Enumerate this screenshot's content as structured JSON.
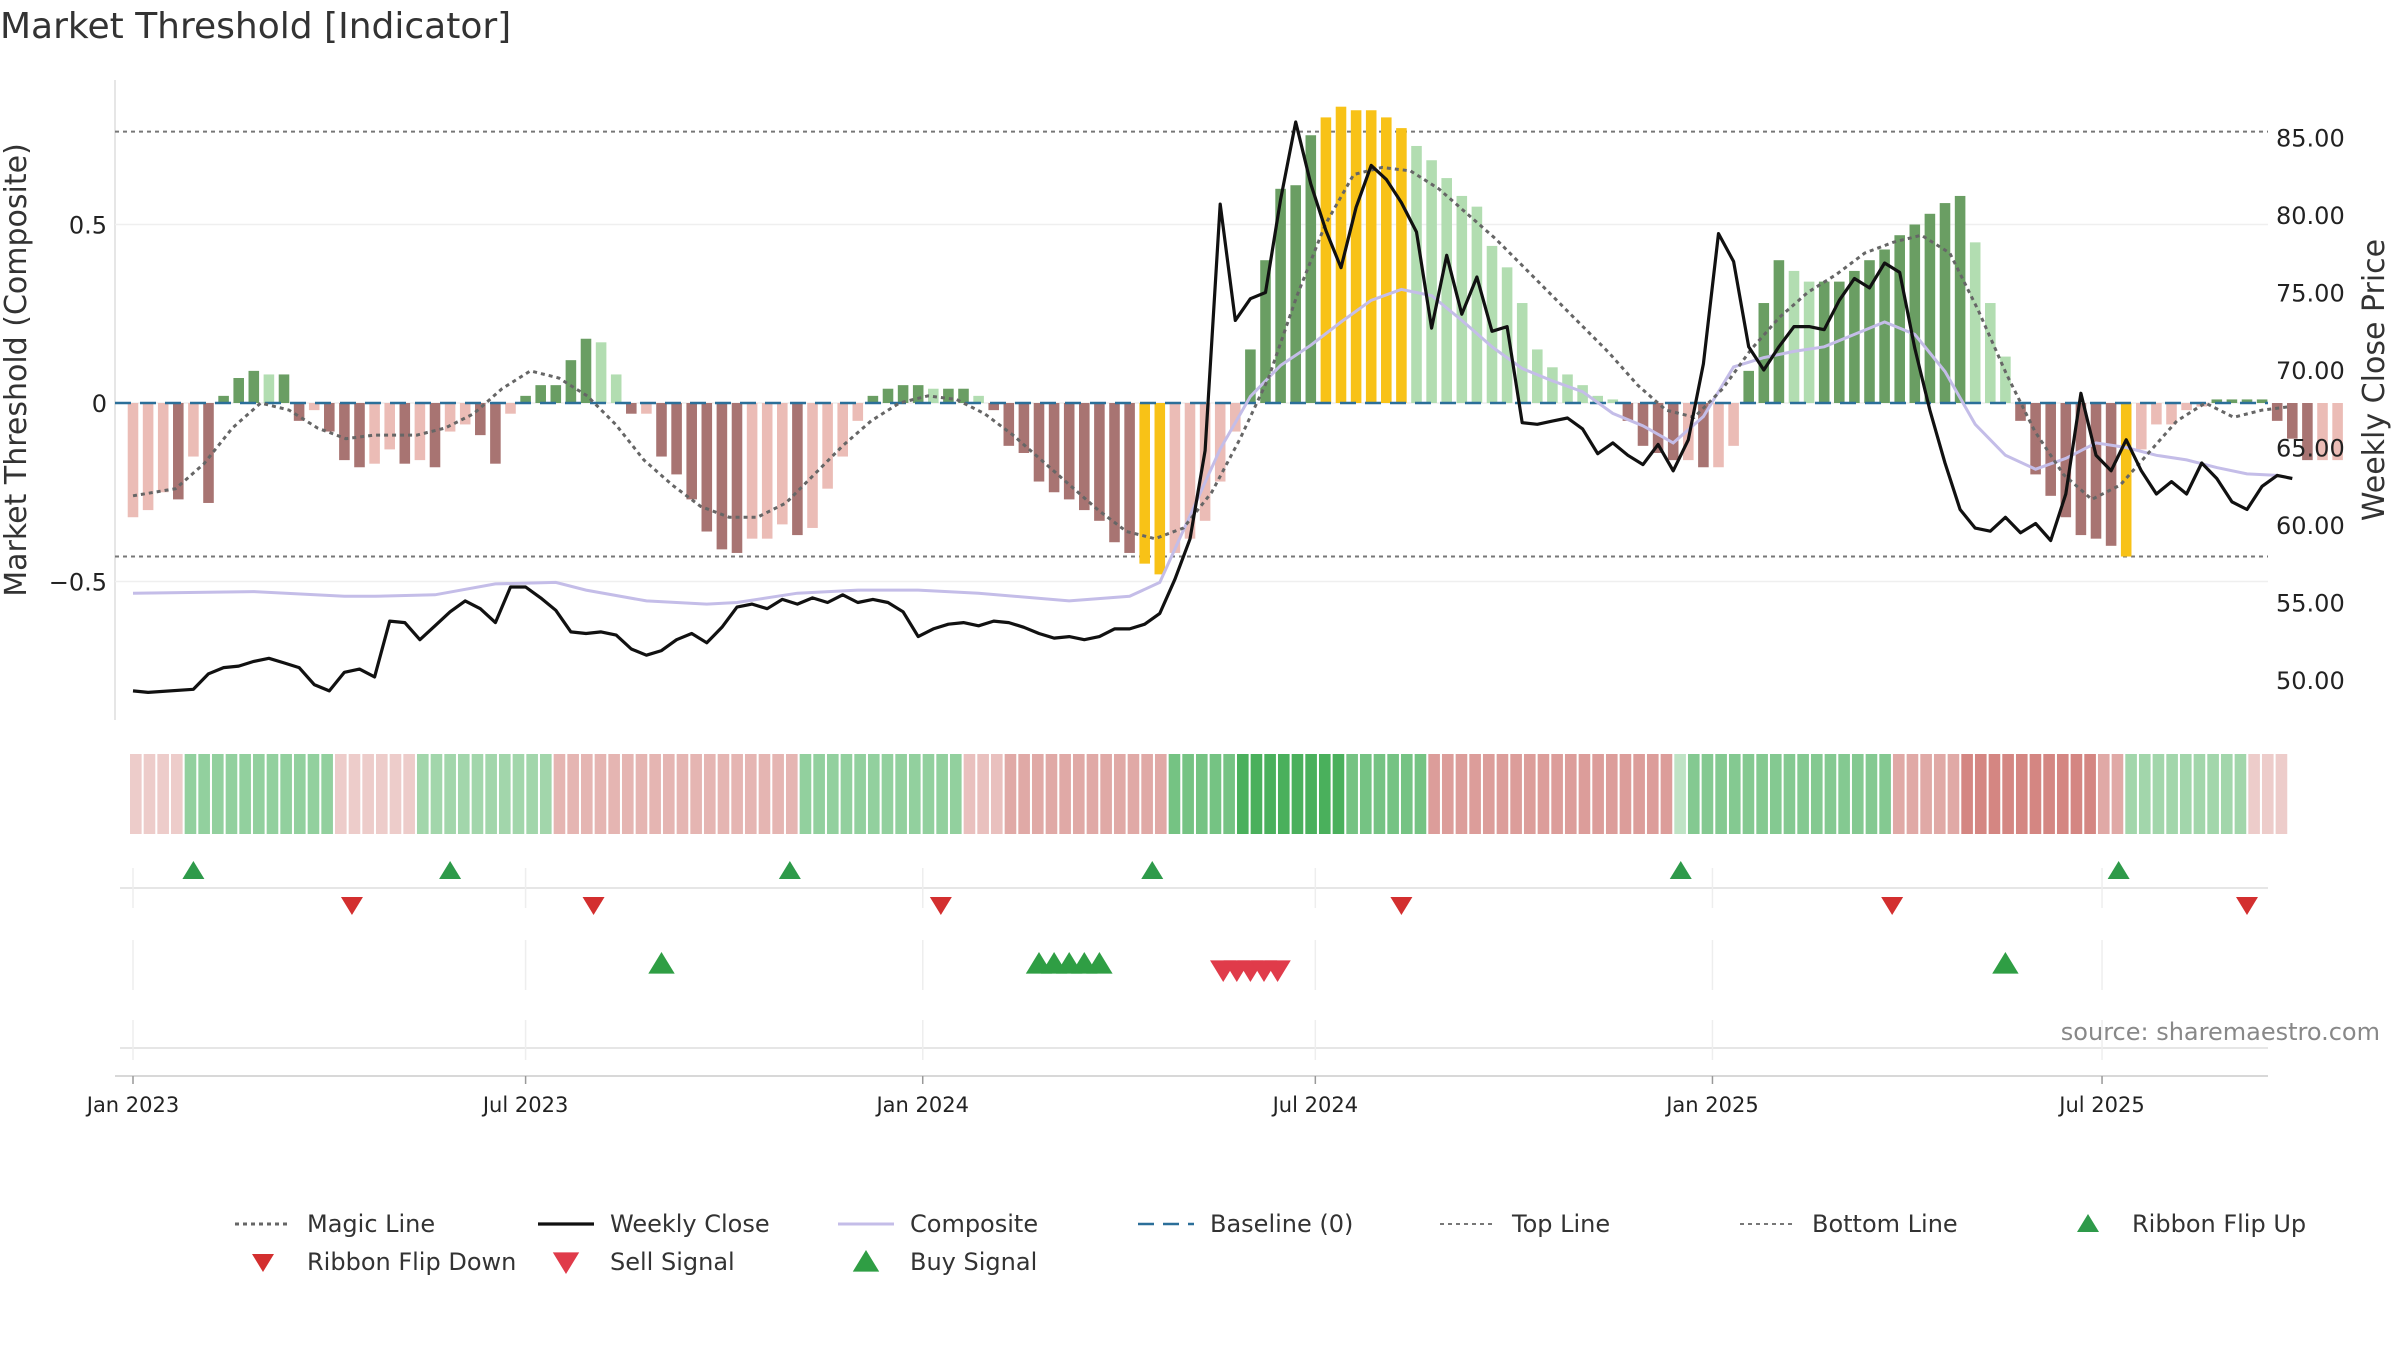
{
  "chart_data": {
    "type": "bar",
    "title": "Market Threshold [Indicator]",
    "ylabel_left": "Market Threshold (Composite)",
    "ylabel_right": "Weekly Close Price",
    "source": "source: sharemaestro.com",
    "ylim_left": [
      -0.88,
      0.9
    ],
    "ylim_right": [
      47.0,
      87.6
    ],
    "left_ticks": [
      {
        "v": 0.5,
        "label": "0.5"
      },
      {
        "v": 0,
        "label": "0"
      },
      {
        "v": -0.5,
        "label": "−0.5"
      }
    ],
    "right_ticks": [
      {
        "v": 85,
        "label": "85.00"
      },
      {
        "v": 80,
        "label": "80.00"
      },
      {
        "v": 75,
        "label": "75.00"
      },
      {
        "v": 70,
        "label": "70.00"
      },
      {
        "v": 65,
        "label": "65.00"
      },
      {
        "v": 60,
        "label": "60.00"
      },
      {
        "v": 55,
        "label": "55.00"
      },
      {
        "v": 50,
        "label": "50.00"
      }
    ],
    "x_ticks": [
      {
        "w": 0,
        "label": "Jan 2023"
      },
      {
        "w": 26,
        "label": "Jul 2023"
      },
      {
        "w": 52.3,
        "label": "Jan 2024"
      },
      {
        "w": 78.3,
        "label": "Jul 2024"
      },
      {
        "w": 104.6,
        "label": "Jan 2025"
      },
      {
        "w": 130.4,
        "label": "Jul 2025"
      }
    ],
    "weeks": 143,
    "top_line": 0.76,
    "bottom_line": -0.43,
    "baseline": 0,
    "composite": [
      -0.32,
      -0.3,
      -0.25,
      -0.27,
      -0.15,
      -0.28,
      0.02,
      0.07,
      0.09,
      0.08,
      0.08,
      -0.05,
      -0.02,
      -0.08,
      -0.16,
      -0.18,
      -0.17,
      -0.13,
      -0.17,
      -0.16,
      -0.18,
      -0.08,
      -0.06,
      -0.09,
      -0.17,
      -0.03,
      0.02,
      0.05,
      0.05,
      0.12,
      0.18,
      0.17,
      0.08,
      -0.03,
      -0.03,
      -0.15,
      -0.2,
      -0.27,
      -0.36,
      -0.41,
      -0.42,
      -0.38,
      -0.38,
      -0.34,
      -0.37,
      -0.35,
      -0.24,
      -0.15,
      -0.05,
      0.02,
      0.04,
      0.05,
      0.05,
      0.04,
      0.04,
      0.04,
      0.02,
      -0.02,
      -0.12,
      -0.14,
      -0.22,
      -0.25,
      -0.27,
      -0.3,
      -0.33,
      -0.39,
      -0.42,
      -0.45,
      -0.48,
      -0.42,
      -0.38,
      -0.33,
      -0.22,
      -0.08,
      0.15,
      0.4,
      0.6,
      0.61,
      0.75,
      0.8,
      0.83,
      0.82,
      0.82,
      0.8,
      0.77,
      0.72,
      0.68,
      0.63,
      0.58,
      0.55,
      0.44,
      0.38,
      0.28,
      0.15,
      0.1,
      0.08,
      0.05,
      0.02,
      0.01,
      -0.05,
      -0.12,
      -0.14,
      -0.16,
      -0.16,
      -0.18,
      -0.18,
      -0.12,
      0.09,
      0.28,
      0.4,
      0.37,
      0.34,
      0.34,
      0.34,
      0.37,
      0.4,
      0.43,
      0.47,
      0.5,
      0.53,
      0.56,
      0.58,
      0.45,
      0.28,
      0.13,
      -0.05,
      -0.2,
      -0.26,
      -0.32,
      -0.37,
      -0.38,
      -0.4,
      -0.43,
      -0.13,
      -0.06,
      -0.06,
      -0.02,
      -0.01,
      0.01,
      0.01,
      0.01,
      0.01,
      -0.05,
      -0.1,
      -0.16,
      -0.16,
      -0.16
    ],
    "bar_colors": {
      "neg_light": "#ebbcb6",
      "neg_dark": "#a87472",
      "pos_light": "#b2ddb1",
      "pos_dark": "#6a9e63",
      "extreme": "#f8c217"
    },
    "ribbon": [
      -0.2,
      -0.2,
      -0.2,
      -0.2,
      0.5,
      0.5,
      0.5,
      0.5,
      0.5,
      0.5,
      0.5,
      0.5,
      0.5,
      0.5,
      0.5,
      -0.2,
      -0.2,
      -0.2,
      -0.2,
      -0.2,
      -0.2,
      0.4,
      0.4,
      0.4,
      0.4,
      0.4,
      0.4,
      0.4,
      0.4,
      0.4,
      0.4,
      -0.4,
      -0.4,
      -0.4,
      -0.4,
      -0.4,
      -0.4,
      -0.4,
      -0.4,
      -0.4,
      -0.4,
      -0.4,
      -0.4,
      -0.4,
      -0.4,
      -0.4,
      -0.4,
      -0.4,
      -0.4,
      0.5,
      0.5,
      0.5,
      0.5,
      0.5,
      0.5,
      0.5,
      0.5,
      0.5,
      0.5,
      0.5,
      0.5,
      -0.3,
      -0.3,
      -0.3,
      -0.5,
      -0.5,
      -0.5,
      -0.5,
      -0.5,
      -0.5,
      -0.5,
      -0.5,
      -0.5,
      -0.5,
      -0.5,
      -0.5,
      0.7,
      0.7,
      0.7,
      0.7,
      0.7,
      1.0,
      1.0,
      1.0,
      1.0,
      1.0,
      1.0,
      1.0,
      1.0,
      0.7,
      0.7,
      0.7,
      0.7,
      0.7,
      0.7,
      -0.6,
      -0.6,
      -0.6,
      -0.6,
      -0.6,
      -0.6,
      -0.6,
      -0.6,
      -0.6,
      -0.6,
      -0.6,
      -0.6,
      -0.6,
      -0.6,
      -0.6,
      -0.6,
      -0.6,
      -0.6,
      0.2,
      0.6,
      0.6,
      0.6,
      0.6,
      0.6,
      0.6,
      0.6,
      0.6,
      0.6,
      0.6,
      0.6,
      0.6,
      0.6,
      0.6,
      0.6,
      -0.5,
      -0.5,
      -0.5,
      -0.5,
      -0.5,
      -0.8,
      -0.8,
      -0.8,
      -0.8,
      -0.8,
      -0.8,
      -0.8,
      -0.8,
      -0.8,
      -0.8,
      -0.5,
      -0.5,
      0.4,
      0.4,
      0.4,
      0.4,
      0.4,
      0.4,
      0.4,
      0.4,
      0.4,
      -0.2,
      -0.2,
      -0.2
    ],
    "magic_line": [
      [
        0,
        -0.26
      ],
      [
        3,
        -0.24
      ],
      [
        5,
        -0.17
      ],
      [
        7,
        -0.07
      ],
      [
        9,
        0.0
      ],
      [
        11,
        -0.02
      ],
      [
        13,
        -0.07
      ],
      [
        15,
        -0.1
      ],
      [
        17,
        -0.09
      ],
      [
        20,
        -0.09
      ],
      [
        22,
        -0.07
      ],
      [
        24,
        -0.03
      ],
      [
        26,
        0.04
      ],
      [
        28,
        0.09
      ],
      [
        30,
        0.07
      ],
      [
        32,
        0.02
      ],
      [
        34,
        -0.06
      ],
      [
        36,
        -0.16
      ],
      [
        38,
        -0.23
      ],
      [
        40,
        -0.29
      ],
      [
        42,
        -0.32
      ],
      [
        44,
        -0.32
      ],
      [
        46,
        -0.28
      ],
      [
        48,
        -0.2
      ],
      [
        50,
        -0.12
      ],
      [
        52,
        -0.05
      ],
      [
        54,
        0.0
      ],
      [
        56,
        0.02
      ],
      [
        58,
        0.01
      ],
      [
        60,
        -0.03
      ],
      [
        62,
        -0.09
      ],
      [
        64,
        -0.16
      ],
      [
        66,
        -0.23
      ],
      [
        68,
        -0.3
      ],
      [
        70,
        -0.36
      ],
      [
        72,
        -0.38
      ],
      [
        74,
        -0.35
      ],
      [
        76,
        -0.25
      ],
      [
        78,
        -0.1
      ],
      [
        80,
        0.07
      ],
      [
        82,
        0.3
      ],
      [
        84,
        0.5
      ],
      [
        86,
        0.64
      ],
      [
        88,
        0.66
      ],
      [
        90,
        0.65
      ],
      [
        92,
        0.6
      ],
      [
        94,
        0.53
      ],
      [
        96,
        0.46
      ],
      [
        98,
        0.38
      ],
      [
        100,
        0.3
      ],
      [
        102,
        0.22
      ],
      [
        104,
        0.14
      ],
      [
        106,
        0.05
      ],
      [
        108,
        -0.02
      ],
      [
        110,
        -0.04
      ],
      [
        112,
        0.04
      ],
      [
        114,
        0.15
      ],
      [
        116,
        0.24
      ],
      [
        118,
        0.31
      ],
      [
        120,
        0.36
      ],
      [
        122,
        0.42
      ],
      [
        124,
        0.45
      ],
      [
        126,
        0.47
      ],
      [
        128,
        0.42
      ],
      [
        130,
        0.26
      ],
      [
        132,
        0.08
      ],
      [
        134,
        -0.08
      ],
      [
        136,
        -0.2
      ],
      [
        138,
        -0.27
      ],
      [
        140,
        -0.23
      ],
      [
        142,
        -0.14
      ],
      [
        144,
        -0.05
      ],
      [
        146,
        0.0
      ],
      [
        148,
        -0.04
      ],
      [
        150,
        -0.02
      ],
      [
        152,
        -0.01
      ]
    ],
    "weekly_close": [
      [
        0,
        49.3
      ],
      [
        1,
        49.2
      ],
      [
        4,
        49.4
      ],
      [
        5,
        50.4
      ],
      [
        6,
        50.8
      ],
      [
        7,
        50.9
      ],
      [
        8,
        51.2
      ],
      [
        9,
        51.4
      ],
      [
        10,
        51.1
      ],
      [
        11,
        50.8
      ],
      [
        12,
        49.7
      ],
      [
        13,
        49.3
      ],
      [
        14,
        50.5
      ],
      [
        15,
        50.7
      ],
      [
        16,
        50.2
      ],
      [
        17,
        53.8
      ],
      [
        18,
        53.7
      ],
      [
        19,
        52.6
      ],
      [
        20,
        53.5
      ],
      [
        21,
        54.4
      ],
      [
        22,
        55.1
      ],
      [
        23,
        54.6
      ],
      [
        24,
        53.7
      ],
      [
        25,
        56.0
      ],
      [
        26,
        56.0
      ],
      [
        27,
        55.3
      ],
      [
        28,
        54.5
      ],
      [
        29,
        53.1
      ],
      [
        30,
        53.0
      ],
      [
        31,
        53.1
      ],
      [
        32,
        52.9
      ],
      [
        33,
        52.0
      ],
      [
        34,
        51.6
      ],
      [
        35,
        51.9
      ],
      [
        36,
        52.6
      ],
      [
        37,
        53.0
      ],
      [
        38,
        52.4
      ],
      [
        39,
        53.4
      ],
      [
        40,
        54.7
      ],
      [
        41,
        54.9
      ],
      [
        42,
        54.6
      ],
      [
        43,
        55.2
      ],
      [
        44,
        54.9
      ],
      [
        45,
        55.3
      ],
      [
        46,
        55.0
      ],
      [
        47,
        55.5
      ],
      [
        48,
        55.0
      ],
      [
        49,
        55.2
      ],
      [
        50,
        55.0
      ],
      [
        51,
        54.4
      ],
      [
        52,
        52.8
      ],
      [
        53,
        53.3
      ],
      [
        54,
        53.6
      ],
      [
        55,
        53.7
      ],
      [
        56,
        53.5
      ],
      [
        57,
        53.8
      ],
      [
        58,
        53.7
      ],
      [
        59,
        53.4
      ],
      [
        60,
        53.0
      ],
      [
        61,
        52.7
      ],
      [
        62,
        52.8
      ],
      [
        63,
        52.6
      ],
      [
        64,
        52.8
      ],
      [
        65,
        53.3
      ],
      [
        66,
        53.3
      ],
      [
        67,
        53.6
      ],
      [
        68,
        54.3
      ],
      [
        69,
        56.5
      ],
      [
        70,
        59.1
      ],
      [
        71,
        64.8
      ],
      [
        72,
        80.7
      ],
      [
        73,
        73.2
      ],
      [
        74,
        74.6
      ],
      [
        75,
        75.0
      ],
      [
        76,
        81.0
      ],
      [
        77,
        86.0
      ],
      [
        78,
        82.0
      ],
      [
        79,
        79.0
      ],
      [
        80,
        76.6
      ],
      [
        81,
        80.5
      ],
      [
        82,
        83.2
      ],
      [
        83,
        82.3
      ],
      [
        84,
        80.8
      ],
      [
        85,
        78.9
      ],
      [
        86,
        72.7
      ],
      [
        87,
        77.4
      ],
      [
        88,
        73.6
      ],
      [
        89,
        76.0
      ],
      [
        90,
        72.5
      ],
      [
        91,
        72.8
      ],
      [
        92,
        66.6
      ],
      [
        93,
        66.5
      ],
      [
        94,
        66.7
      ],
      [
        95,
        66.9
      ],
      [
        96,
        66.2
      ],
      [
        97,
        64.6
      ],
      [
        98,
        65.3
      ],
      [
        99,
        64.5
      ],
      [
        100,
        63.9
      ],
      [
        101,
        65.2
      ],
      [
        102,
        63.5
      ],
      [
        103,
        65.5
      ],
      [
        104,
        70.4
      ],
      [
        105,
        78.8
      ],
      [
        106,
        77.0
      ],
      [
        107,
        71.5
      ],
      [
        108,
        70.0
      ],
      [
        109,
        71.5
      ],
      [
        110,
        72.8
      ],
      [
        111,
        72.8
      ],
      [
        112,
        72.6
      ],
      [
        113,
        74.5
      ],
      [
        114,
        75.9
      ],
      [
        115,
        75.3
      ],
      [
        116,
        76.9
      ],
      [
        117,
        76.3
      ],
      [
        118,
        71.4
      ],
      [
        119,
        67.4
      ],
      [
        120,
        64.0
      ],
      [
        121,
        61.0
      ],
      [
        122,
        59.8
      ],
      [
        123,
        59.6
      ],
      [
        124,
        60.5
      ],
      [
        125,
        59.5
      ],
      [
        126,
        60.1
      ],
      [
        127,
        59.0
      ],
      [
        128,
        62.0
      ],
      [
        129,
        68.5
      ],
      [
        130,
        64.5
      ],
      [
        131,
        63.5
      ],
      [
        132,
        65.5
      ],
      [
        133,
        63.5
      ],
      [
        134,
        62.0
      ],
      [
        135,
        62.8
      ],
      [
        136,
        62.0
      ],
      [
        137,
        64.0
      ],
      [
        138,
        63.0
      ],
      [
        139,
        61.5
      ],
      [
        140,
        61.0
      ],
      [
        141,
        62.5
      ],
      [
        142,
        63.2
      ],
      [
        143,
        63.0
      ]
    ],
    "ribbon_flip_up": [
      4,
      21,
      43.5,
      67.5,
      102.5,
      131.5
    ],
    "ribbon_flip_down": [
      14.5,
      30.5,
      53.5,
      84,
      116.5,
      140
    ],
    "buy_signal": [
      35,
      60,
      61,
      62,
      63,
      64,
      124
    ],
    "sell_signal": [
      72.2,
      73.1,
      74,
      74.9,
      75.8
    ],
    "colors": {
      "weekly_close": "#111111",
      "composite": "#c4bde8",
      "magic_line": "#666666",
      "baseline": "#2b6f99",
      "threshold_lines": "#777777",
      "flip_up": "#2e9a4a",
      "flip_down": "#d32f2f",
      "buy": "#2f9e44",
      "sell": "#e03b4a"
    },
    "legend": [
      {
        "key": "magic",
        "label": "Magic Line"
      },
      {
        "key": "close",
        "label": "Weekly Close"
      },
      {
        "key": "composite",
        "label": "Composite"
      },
      {
        "key": "baseline",
        "label": "Baseline (0)"
      },
      {
        "key": "top",
        "label": "Top Line"
      },
      {
        "key": "bottom",
        "label": "Bottom Line"
      },
      {
        "key": "flipup",
        "label": "Ribbon Flip Up"
      },
      {
        "key": "flipdown",
        "label": "Ribbon Flip Down"
      },
      {
        "key": "sell",
        "label": "Sell Signal"
      },
      {
        "key": "buy",
        "label": "Buy Signal"
      }
    ]
  }
}
